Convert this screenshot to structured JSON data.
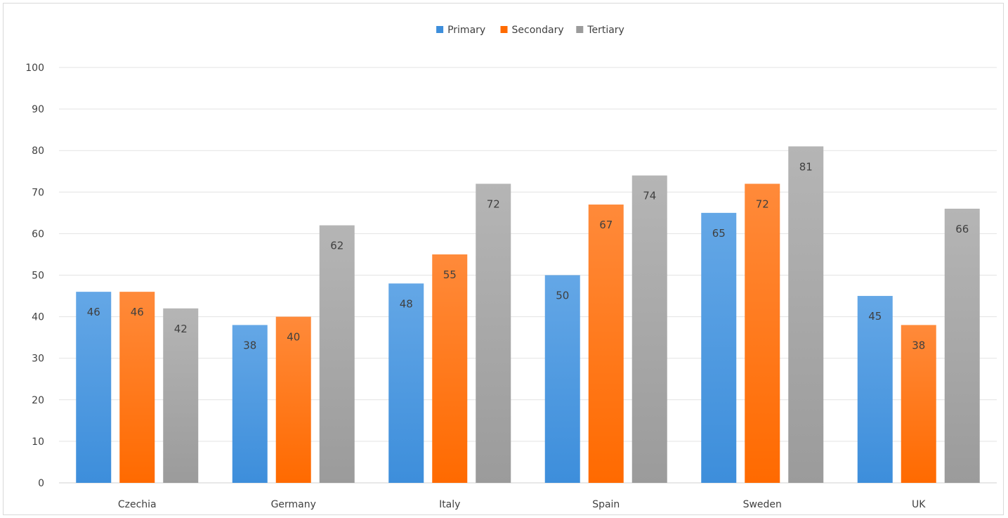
{
  "chart_data": {
    "type": "bar",
    "categories": [
      "Czechia",
      "Germany",
      "Italy",
      "Spain",
      "Sweden",
      "UK"
    ],
    "series": [
      {
        "name": "Primary",
        "values": [
          46,
          38,
          48,
          50,
          65,
          45
        ],
        "color": "#3d8edb",
        "color_light": "#64a7e6"
      },
      {
        "name": "Secondary",
        "values": [
          46,
          40,
          55,
          67,
          72,
          38
        ],
        "color": "#ff6a00",
        "color_light": "#ff8a3a"
      },
      {
        "name": "Tertiary",
        "values": [
          42,
          62,
          72,
          74,
          81,
          66
        ],
        "color": "#9b9b9b",
        "color_light": "#b5b5b5"
      }
    ],
    "title": "",
    "xlabel": "",
    "ylabel": "",
    "ylim": [
      0,
      100
    ],
    "yticks": [
      0,
      10,
      20,
      30,
      40,
      50,
      60,
      70,
      80,
      90,
      100
    ],
    "grid": true,
    "legend_position": "top-center",
    "data_labels": true
  }
}
